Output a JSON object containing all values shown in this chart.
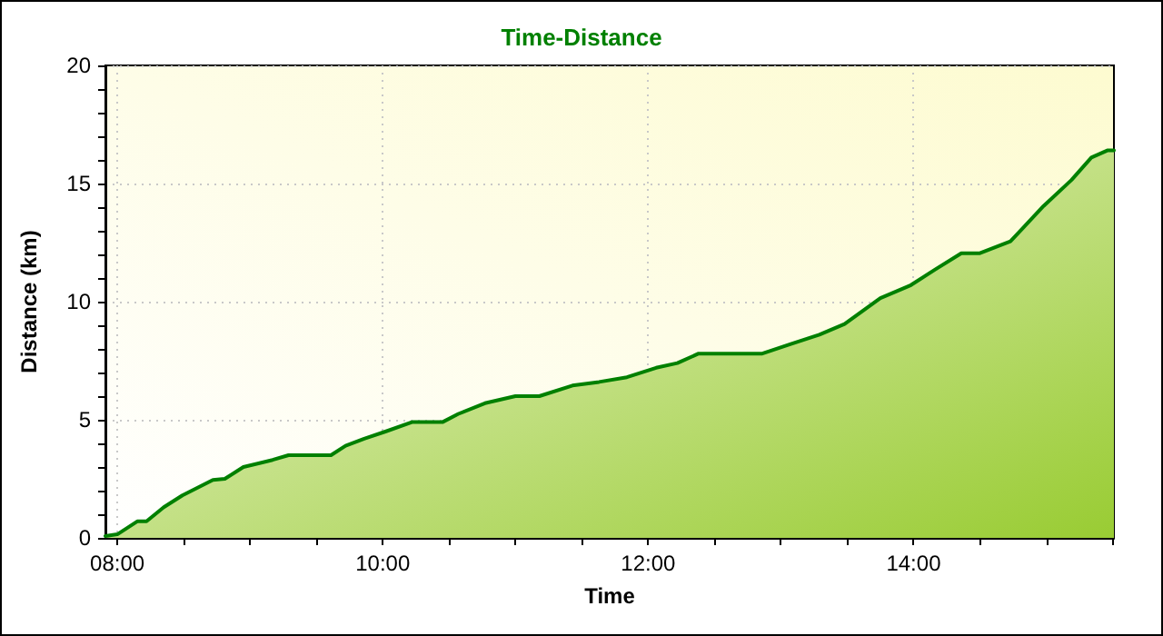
{
  "chart_data": {
    "type": "area",
    "title": "Time-Distance",
    "xlabel": "Time",
    "ylabel": "Distance (km)",
    "x": [
      7.91,
      8.0,
      8.15,
      8.22,
      8.35,
      8.49,
      8.72,
      8.81,
      8.95,
      9.17,
      9.29,
      9.61,
      9.72,
      9.86,
      10.02,
      10.22,
      10.45,
      10.57,
      10.77,
      11.0,
      11.18,
      11.43,
      11.63,
      11.84,
      12.06,
      12.22,
      12.38,
      12.86,
      13.07,
      13.29,
      13.48,
      13.75,
      13.98,
      14.16,
      14.36,
      14.5,
      14.73,
      14.98,
      15.19,
      15.34,
      15.46,
      15.51
    ],
    "series": [
      {
        "color": "#008000",
        "values": [
          0.08,
          0.15,
          0.7,
          0.7,
          1.3,
          1.8,
          2.45,
          2.5,
          3.0,
          3.3,
          3.5,
          3.5,
          3.9,
          4.2,
          4.5,
          4.9,
          4.9,
          5.25,
          5.7,
          6.0,
          6.0,
          6.45,
          6.6,
          6.8,
          7.2,
          7.4,
          7.8,
          7.8,
          8.2,
          8.6,
          9.05,
          10.15,
          10.7,
          11.35,
          12.05,
          12.05,
          12.55,
          14.05,
          15.15,
          16.1,
          16.4,
          16.4
        ]
      }
    ],
    "xlim": [
      7.91,
      15.51
    ],
    "xticks": [
      {
        "value": 8,
        "label": "08:00"
      },
      {
        "value": 8.5,
        "label": null
      },
      {
        "value": 9,
        "label": null
      },
      {
        "value": 9.5,
        "label": null
      },
      {
        "value": 10,
        "label": "10:00"
      },
      {
        "value": 10.5,
        "label": null
      },
      {
        "value": 11,
        "label": null
      },
      {
        "value": 11.5,
        "label": null
      },
      {
        "value": 12,
        "label": "12:00"
      },
      {
        "value": 12.5,
        "label": null
      },
      {
        "value": 13,
        "label": null
      },
      {
        "value": 13.5,
        "label": null
      },
      {
        "value": 14,
        "label": "14:00"
      },
      {
        "value": 14.5,
        "label": null
      },
      {
        "value": 15,
        "label": null
      },
      {
        "value": 15.5,
        "label": null
      }
    ],
    "ylim": [
      0,
      20
    ],
    "yticks": [
      0,
      {
        "value": 1,
        "label": null
      },
      {
        "value": 2,
        "label": null
      },
      {
        "value": 3,
        "label": null
      },
      {
        "value": 4,
        "label": null
      },
      5,
      {
        "value": 6,
        "label": null
      },
      {
        "value": 7,
        "label": null
      },
      {
        "value": 8,
        "label": null
      },
      {
        "value": 9,
        "label": null
      },
      10,
      {
        "value": 11,
        "label": null
      },
      {
        "value": 12,
        "label": null
      },
      {
        "value": 13,
        "label": null
      },
      {
        "value": 14,
        "label": null
      },
      15,
      {
        "value": 16,
        "label": null
      },
      {
        "value": 17,
        "label": null
      },
      {
        "value": 18,
        "label": null
      },
      {
        "value": 19,
        "label": null
      },
      20
    ],
    "grid": true,
    "marker": "none",
    "line_style": "solid"
  }
}
